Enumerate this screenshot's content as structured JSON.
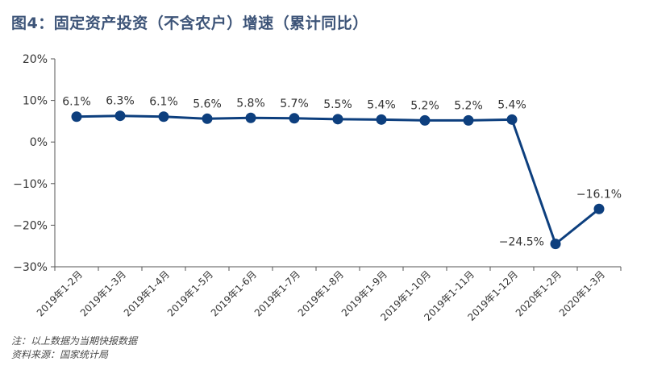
{
  "title": "图4：固定资产投资（不含农户）增速（累计同比）",
  "notes": {
    "note": "注：以上数据为当期快报数据",
    "source": "资料来源：国家统计局"
  },
  "colors": {
    "line": "#0d3f7e",
    "axis": "#555555",
    "title": "#3d5478"
  },
  "chart_data": {
    "type": "line",
    "title": "图4：固定资产投资（不含农户）增速（累计同比）",
    "categories": [
      "2019年1-2月",
      "2019年1-3月",
      "2019年1-4月",
      "2019年1-5月",
      "2019年1-6月",
      "2019年1-7月",
      "2019年1-8月",
      "2019年1-9月",
      "2019年1-10月",
      "2019年1-11月",
      "2019年1-12月",
      "2020年1-2月",
      "2020年1-3月"
    ],
    "series": [
      {
        "values": [
          6.1,
          6.3,
          6.1,
          5.6,
          5.8,
          5.7,
          5.5,
          5.4,
          5.2,
          5.2,
          5.4,
          -24.5,
          -16.1
        ]
      }
    ],
    "data_labels": [
      "6.1%",
      "6.3%",
      "6.1%",
      "5.6%",
      "5.8%",
      "5.7%",
      "5.5%",
      "5.4%",
      "5.2%",
      "5.2%",
      "5.4%",
      "−24.5%",
      "−16.1%"
    ],
    "y_ticks": [
      20,
      10,
      0,
      -10,
      -20,
      -30
    ],
    "y_tick_labels": [
      "20%",
      "10%",
      "0%",
      "−10%",
      "−20%",
      "−30%"
    ],
    "ylim": [
      -30,
      20
    ],
    "xlabel": "",
    "ylabel": "",
    "grid": false,
    "legend": "none"
  }
}
